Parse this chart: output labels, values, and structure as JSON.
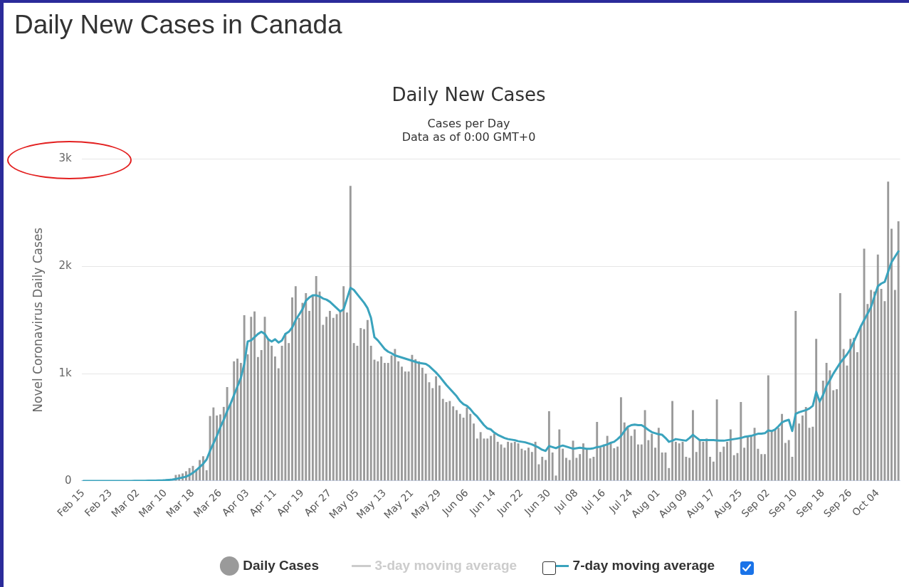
{
  "chart_data": {
    "type": "bar",
    "title": "Daily New Cases in Canada",
    "subtitle": "Daily New Cases",
    "annotations": [
      "Cases per Day",
      "Data as of 0:00 GMT+0"
    ],
    "ylabel": "Novel Coronavirus Daily Cases",
    "categories": [
      "Feb 15",
      null,
      null,
      null,
      null,
      null,
      null,
      null,
      "Feb 23",
      null,
      null,
      null,
      null,
      null,
      null,
      null,
      "Mar 02",
      null,
      null,
      null,
      null,
      null,
      null,
      null,
      "Mar 10",
      null,
      null,
      null,
      null,
      null,
      null,
      null,
      "Mar 18",
      null,
      null,
      null,
      null,
      null,
      null,
      null,
      "Mar 26",
      null,
      null,
      null,
      null,
      null,
      null,
      null,
      "Apr 03",
      null,
      null,
      null,
      null,
      null,
      null,
      null,
      "Apr 11",
      null,
      null,
      null,
      null,
      null,
      null,
      null,
      "Apr 19",
      null,
      null,
      null,
      null,
      null,
      null,
      null,
      "Apr 27",
      null,
      null,
      null,
      null,
      null,
      null,
      null,
      "May 05",
      null,
      null,
      null,
      null,
      null,
      null,
      null,
      "May 13",
      null,
      null,
      null,
      null,
      null,
      null,
      null,
      "May 21",
      null,
      null,
      null,
      null,
      null,
      null,
      null,
      "May 29",
      null,
      null,
      null,
      null,
      null,
      null,
      null,
      "Jun 06",
      null,
      null,
      null,
      null,
      null,
      null,
      null,
      "Jun 14",
      null,
      null,
      null,
      null,
      null,
      null,
      null,
      "Jun 22",
      null,
      null,
      null,
      null,
      null,
      null,
      null,
      "Jun 30",
      null,
      null,
      null,
      null,
      null,
      null,
      null,
      "Jul 08",
      null,
      null,
      null,
      null,
      null,
      null,
      null,
      "Jul 16",
      null,
      null,
      null,
      null,
      null,
      null,
      null,
      "Jul 24",
      null,
      null,
      null,
      null,
      null,
      null,
      null,
      "Aug 01",
      null,
      null,
      null,
      null,
      null,
      null,
      null,
      "Aug 09",
      null,
      null,
      null,
      null,
      null,
      null,
      null,
      "Aug 17",
      null,
      null,
      null,
      null,
      null,
      null,
      null,
      "Aug 25",
      null,
      null,
      null,
      null,
      null,
      null,
      null,
      "Sep 02",
      null,
      null,
      null,
      null,
      null,
      null,
      null,
      "Sep 10",
      null,
      null,
      null,
      null,
      null,
      null,
      null,
      "Sep 18",
      null,
      null,
      null,
      null,
      null,
      null,
      null,
      "Sep 26",
      null,
      null,
      null,
      null,
      null,
      null,
      null,
      "Oct 04",
      null,
      null,
      null,
      null,
      null,
      null
    ],
    "series": [
      {
        "name": "Daily Cases",
        "color": "#9a9a9a",
        "values": [
          0,
          0,
          0,
          0,
          0,
          0,
          null,
          0,
          0,
          0,
          0,
          0,
          0,
          null,
          0,
          null,
          null,
          null,
          null,
          0,
          null,
          null,
          null,
          null,
          null,
          null,
          null,
          55,
          60,
          70,
          90,
          120,
          140,
          110,
          195,
          230,
          100,
          605,
          685,
          610,
          620,
          690,
          875,
          720,
          1115,
          1140,
          1100,
          1545,
          1180,
          1530,
          1580,
          1155,
          1220,
          1530,
          1320,
          1260,
          1160,
          1050,
          1260,
          1375,
          1285,
          1710,
          1815,
          1520,
          1660,
          1750,
          1585,
          1725,
          1910,
          1765,
          1455,
          1530,
          1585,
          1520,
          1555,
          1585,
          1815,
          1570,
          2750,
          1285,
          1260,
          1425,
          1415,
          1500,
          1260,
          1130,
          1115,
          1160,
          1100,
          1100,
          1170,
          1230,
          1115,
          1065,
          1020,
          1020,
          1175,
          1135,
          1115,
          1055,
          1000,
          920,
          865,
          975,
          890,
          765,
          735,
          745,
          695,
          660,
          625,
          590,
          685,
          625,
          535,
          395,
          455,
          395,
          395,
          420,
          440,
          365,
          340,
          310,
          365,
          355,
          365,
          350,
          300,
          285,
          310,
          270,
          365,
          155,
          225,
          195,
          650,
          265,
          50,
          480,
          300,
          215,
          195,
          375,
          215,
          250,
          350,
          300,
          210,
          225,
          550,
          310,
          340,
          420,
          365,
          305,
          320,
          780,
          545,
          495,
          420,
          480,
          340,
          340,
          660,
          380,
          440,
          310,
          495,
          265,
          265,
          120,
          745,
          365,
          350,
          365,
          225,
          215,
          660,
          270,
          390,
          365,
          395,
          225,
          180,
          760,
          270,
          320,
          365,
          480,
          240,
          260,
          735,
          310,
          415,
          425,
          495,
          300,
          250,
          250,
          985,
          465,
          480,
          495,
          625,
          355,
          380,
          225,
          1585,
          535,
          610,
          690,
          495,
          505,
          1325,
          740,
          935,
          1100,
          1030,
          845,
          855,
          1750,
          1230,
          1075,
          1325,
          1335,
          1200,
          1440,
          2165,
          1650,
          1780,
          1765,
          2110,
          1790,
          1675,
          2790,
          2350,
          1780,
          2420
        ]
      },
      {
        "name": "3-day moving average",
        "type": "line",
        "color": "#cccccc",
        "values": [
          null,
          null,
          null,
          null,
          null,
          null,
          null,
          null,
          null,
          null,
          null,
          null,
          null,
          null,
          null,
          null,
          null,
          null,
          null,
          null,
          null,
          null,
          null,
          null,
          null,
          null,
          null,
          null,
          null,
          null,
          null,
          null,
          null,
          null,
          null,
          null,
          null,
          null,
          null,
          null,
          null,
          null,
          null,
          null,
          null,
          null,
          null,
          null,
          null,
          null,
          null,
          null,
          null,
          null,
          null,
          null,
          null,
          null,
          null,
          null,
          null,
          null,
          null,
          null,
          null,
          null,
          null,
          null,
          null,
          null,
          null,
          null,
          null,
          null,
          null,
          null,
          null,
          null,
          null,
          null,
          null,
          null,
          null,
          null,
          null,
          null,
          null,
          null,
          null,
          null,
          null,
          null,
          null,
          null,
          null,
          null,
          null,
          null,
          null,
          null,
          null,
          null,
          null,
          null,
          null,
          null,
          null,
          null,
          null,
          null,
          null,
          null,
          null,
          null,
          null,
          null,
          null,
          null,
          null,
          null,
          null,
          null,
          null,
          null,
          null,
          null,
          null,
          null,
          null,
          null,
          null,
          null,
          null,
          null,
          null,
          null,
          null,
          null,
          null,
          null,
          null,
          null,
          null,
          null,
          null,
          null,
          null,
          null,
          null,
          null,
          null,
          null,
          null,
          null,
          null,
          null,
          null,
          null,
          null,
          null,
          null,
          null,
          null,
          null,
          null,
          null,
          null,
          null,
          null,
          null,
          null,
          null,
          null,
          null,
          null,
          null,
          null,
          null,
          null,
          null,
          null,
          null,
          null,
          null,
          null,
          null,
          null,
          null,
          null,
          null,
          null,
          null,
          null,
          null,
          null,
          null,
          null,
          null,
          null,
          null,
          null,
          null,
          null,
          null,
          null,
          null,
          null,
          null,
          null,
          null,
          null,
          null,
          null,
          null,
          null,
          null,
          null,
          null,
          null,
          null,
          null,
          null,
          null,
          null,
          null,
          null,
          null,
          null,
          null,
          null,
          null,
          null,
          null,
          null,
          null,
          null,
          null,
          null,
          null
        ]
      },
      {
        "name": "7-day moving average",
        "type": "line",
        "color": "#3aa3bd",
        "values": [
          0,
          0,
          0,
          0,
          0,
          0,
          0,
          0,
          0,
          0,
          0,
          0,
          0,
          0,
          0,
          1,
          1,
          1,
          1,
          2,
          2,
          3,
          4,
          5,
          7,
          10,
          13,
          18,
          25,
          32,
          40,
          55,
          75,
          100,
          130,
          160,
          200,
          280,
          350,
          420,
          500,
          570,
          650,
          720,
          800,
          880,
          960,
          1090,
          1300,
          1310,
          1340,
          1370,
          1390,
          1370,
          1320,
          1300,
          1320,
          1290,
          1310,
          1370,
          1390,
          1430,
          1500,
          1550,
          1600,
          1680,
          1710,
          1730,
          1730,
          1720,
          1700,
          1690,
          1670,
          1640,
          1610,
          1580,
          1600,
          1700,
          1800,
          1780,
          1740,
          1700,
          1660,
          1610,
          1520,
          1340,
          1310,
          1270,
          1230,
          1205,
          1190,
          1170,
          1160,
          1150,
          1140,
          1130,
          1120,
          1110,
          1100,
          1095,
          1090,
          1070,
          1040,
          1010,
          975,
          935,
          895,
          860,
          825,
          790,
          745,
          715,
          700,
          670,
          630,
          600,
          560,
          520,
          490,
          480,
          450,
          430,
          415,
          400,
          390,
          385,
          380,
          370,
          365,
          360,
          350,
          340,
          325,
          310,
          290,
          280,
          325,
          315,
          305,
          320,
          330,
          320,
          310,
          300,
          305,
          310,
          305,
          300,
          300,
          305,
          315,
          320,
          330,
          340,
          355,
          365,
          390,
          420,
          465,
          505,
          520,
          525,
          520,
          520,
          500,
          475,
          455,
          445,
          435,
          430,
          400,
          365,
          375,
          390,
          385,
          380,
          375,
          400,
          430,
          405,
          380,
          380,
          380,
          380,
          380,
          378,
          376,
          375,
          380,
          385,
          390,
          395,
          400,
          410,
          415,
          420,
          430,
          440,
          440,
          445,
          470,
          465,
          480,
          510,
          545,
          560,
          570,
          465,
          625,
          640,
          650,
          660,
          675,
          700,
          830,
          740,
          800,
          885,
          940,
          1000,
          1050,
          1100,
          1140,
          1180,
          1230,
          1300,
          1370,
          1440,
          1500,
          1560,
          1620,
          1720,
          1815,
          1840,
          1855,
          1950,
          2040,
          2090,
          2140
        ]
      }
    ],
    "ylim": [
      0,
      3000
    ],
    "yticks": [
      0,
      {
        "value": 1000,
        "label": "1k"
      },
      {
        "value": 2000,
        "label": "2k"
      },
      {
        "value": 3000,
        "label": "3k"
      }
    ],
    "grid": "y",
    "legend": "bottom"
  }
}
